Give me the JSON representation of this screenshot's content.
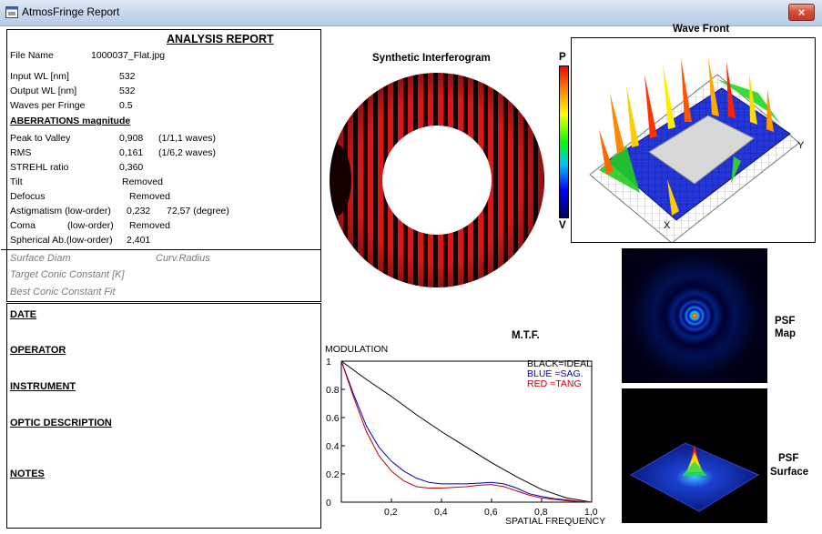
{
  "window": {
    "title": "AtmosFringe  Report",
    "close_glyph": "×"
  },
  "report": {
    "title": "ANALYSIS  REPORT",
    "file_name_label": "File Name",
    "file_name": "1000037_Flat.jpg",
    "input_wl_label": "Input  WL [nm]",
    "input_wl": "532",
    "output_wl_label": "Output WL [nm]",
    "output_wl": "532",
    "waves_label": "Waves per Fringe",
    "waves": "0.5",
    "aberr_heading": "ABERRATIONS magnitude",
    "ptv_label": "Peak to Valley",
    "ptv": "0,908",
    "ptv_waves": "(1/1,1 waves)",
    "rms_label": "RMS",
    "rms": "0,161",
    "rms_waves": "(1/6,2 waves)",
    "strehl_label": "STREHL ratio",
    "strehl": "0,360",
    "tilt_label": "Tilt",
    "tilt": "Removed",
    "defocus_label": "Defocus",
    "defocus": "Removed",
    "astig_label": "Astigmatism  (low-order)",
    "astig": "0,232",
    "astig_deg": "72,57  (degree)",
    "coma_label": "Coma",
    "coma_order": "(low-order)",
    "coma": "Removed",
    "spher_label": "Spherical Ab.(low-order)",
    "spher": "2,401",
    "surface_diam": "Surface Diam",
    "curv_radius": "Curv.Radius",
    "target_conic": "Target Conic Constant [K]",
    "best_conic": "Best Conic Constant Fit"
  },
  "notes_panel": {
    "date": "DATE",
    "operator": "OPERATOR",
    "instrument": "INSTRUMENT",
    "optic": "OPTIC DESCRIPTION",
    "notes": "NOTES"
  },
  "interferogram": {
    "title": "Synthetic Interferogram"
  },
  "wavefront": {
    "title": "Wave Front",
    "scale_top": "P",
    "scale_bottom": "V",
    "axis_x": "X",
    "axis_y": "Y"
  },
  "psf": {
    "map_label_1": "PSF",
    "map_label_2": "Map",
    "surf_label_1": "PSF",
    "surf_label_2": "Surface"
  },
  "mtf": {
    "title": "M.T.F.",
    "ylabel": "MODULATION",
    "xlabel": "SPATIAL FREQUENCY",
    "legend": {
      "ideal": "BLACK=IDEAL",
      "sag": "BLUE  =SAG.",
      "tang": "RED    =TANG"
    },
    "colors": {
      "ideal": "#000000",
      "sag": "#0000c0",
      "tang": "#c00000"
    }
  },
  "chart_data": {
    "type": "line",
    "title": "M.T.F.",
    "xlabel": "SPATIAL FREQUENCY",
    "ylabel": "MODULATION",
    "xlim": [
      0,
      1
    ],
    "ylim": [
      0,
      1
    ],
    "x_ticks": [
      "0,2",
      "0,4",
      "0,6",
      "0,8",
      "1,0"
    ],
    "y_ticks": [
      "0",
      "0.2",
      "0.4",
      "0.6",
      "0.8",
      "1"
    ],
    "series": [
      {
        "name": "BLACK=IDEAL",
        "color": "#000000",
        "x": [
          0,
          0.1,
          0.2,
          0.3,
          0.4,
          0.5,
          0.6,
          0.7,
          0.8,
          0.9,
          1.0
        ],
        "y": [
          1.0,
          0.87,
          0.75,
          0.62,
          0.5,
          0.39,
          0.28,
          0.18,
          0.09,
          0.03,
          0.0
        ]
      },
      {
        "name": "BLUE  =SAG.",
        "color": "#0000c0",
        "x": [
          0,
          0.05,
          0.1,
          0.15,
          0.2,
          0.25,
          0.3,
          0.35,
          0.4,
          0.45,
          0.5,
          0.55,
          0.6,
          0.65,
          0.7,
          0.75,
          0.8,
          0.85,
          0.9,
          0.95,
          1.0
        ],
        "y": [
          1.0,
          0.76,
          0.54,
          0.39,
          0.29,
          0.22,
          0.17,
          0.14,
          0.13,
          0.13,
          0.13,
          0.135,
          0.14,
          0.13,
          0.1,
          0.06,
          0.04,
          0.025,
          0.015,
          0.005,
          0.0
        ]
      },
      {
        "name": "RED    =TANG",
        "color": "#c00000",
        "x": [
          0,
          0.05,
          0.1,
          0.15,
          0.2,
          0.25,
          0.3,
          0.35,
          0.4,
          0.45,
          0.5,
          0.55,
          0.6,
          0.65,
          0.7,
          0.75,
          0.8,
          0.85,
          0.9,
          0.95,
          1.0
        ],
        "y": [
          1.0,
          0.74,
          0.5,
          0.33,
          0.22,
          0.15,
          0.11,
          0.1,
          0.1,
          0.105,
          0.11,
          0.12,
          0.125,
          0.11,
          0.08,
          0.05,
          0.03,
          0.02,
          0.01,
          0.005,
          0.0
        ]
      }
    ]
  }
}
